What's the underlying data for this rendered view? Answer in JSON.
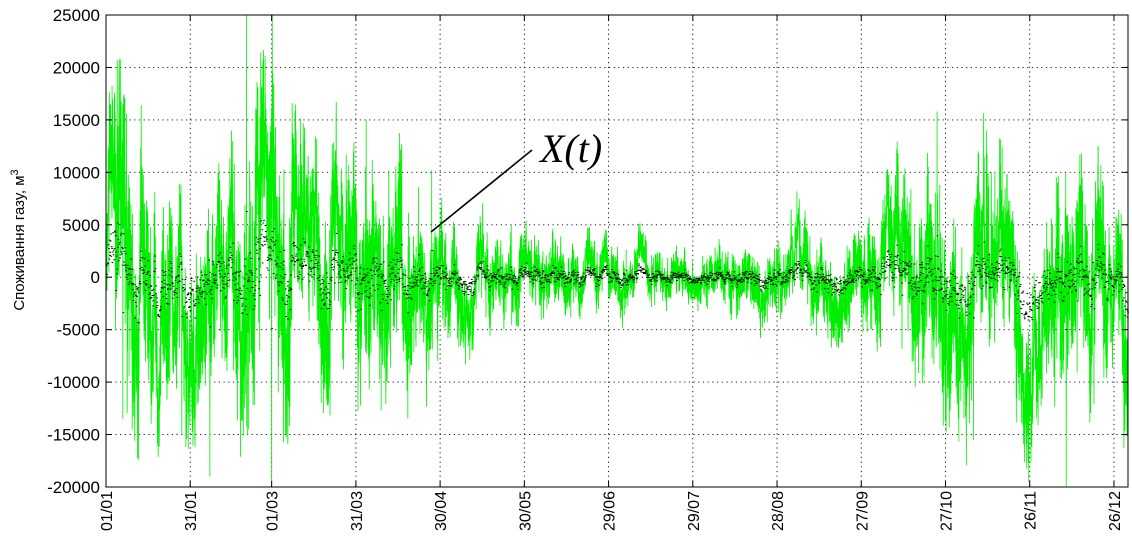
{
  "chart_data": {
    "type": "line",
    "title": "",
    "xlabel": "",
    "ylabel": "Споживання газу, м",
    "ylabel_superscript": "3",
    "annotation": "X(t)",
    "ylim": [
      -20000,
      25000
    ],
    "xlim_days": [
      0,
      364
    ],
    "yticks": [
      -20000,
      -15000,
      -10000,
      -5000,
      0,
      5000,
      10000,
      15000,
      20000,
      25000
    ],
    "xtick_labels": [
      "01/01",
      "31/01",
      "01/03",
      "31/03",
      "30/04",
      "30/05",
      "29/06",
      "29/07",
      "28/08",
      "27/09",
      "27/10",
      "26/11",
      "26/12"
    ],
    "grid": true,
    "series": [
      {
        "color": "#00ee00",
        "marker_color": "#000000",
        "envelope_dates": [
          "01/01",
          "08/01",
          "20/01",
          "01/02",
          "14/02",
          "20/02",
          "01/03",
          "15/03",
          "31/03",
          "16/04",
          "30/04",
          "12/05",
          "30/05",
          "29/06",
          "29/07",
          "08/08",
          "28/08",
          "27/09",
          "27/10",
          "10/11",
          "26/11",
          "10/12",
          "26/12",
          "31/12"
        ],
        "envelope_amplitude": [
          10000,
          13000,
          8500,
          10500,
          8000,
          15000,
          13500,
          10000,
          11000,
          9500,
          6000,
          4500,
          3500,
          3000,
          2200,
          2800,
          3800,
          5000,
          10500,
          8500,
          8000,
          10000,
          7500,
          9000
        ],
        "peaks": [
          {
            "date": "05/01",
            "value": 20700
          },
          {
            "date": "07/01",
            "value": -13500
          },
          {
            "date": "28/01",
            "value": -15000
          },
          {
            "date": "07/02",
            "value": -19000
          },
          {
            "date": "20/02",
            "value": 25000
          },
          {
            "date": "01/03",
            "value": -19500
          },
          {
            "date": "24/03",
            "value": 16700
          },
          {
            "date": "27/04",
            "value": 10200
          },
          {
            "date": "24/10",
            "value": 15800
          },
          {
            "date": "06/11",
            "value": -15500
          },
          {
            "date": "09/12",
            "value": -20000
          },
          {
            "date": "31/12",
            "value": 15000
          }
        ]
      }
    ]
  }
}
